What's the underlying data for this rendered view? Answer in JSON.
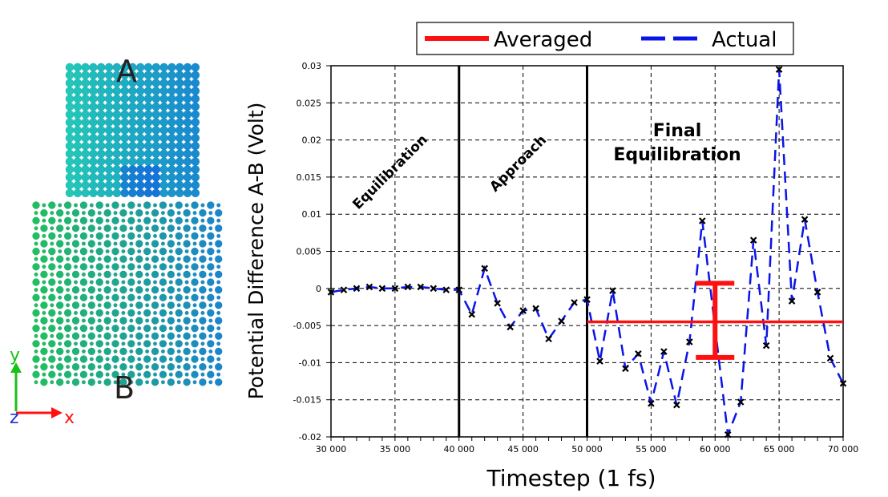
{
  "structure": {
    "label_top": "A",
    "label_bottom": "B",
    "axes": {
      "y": "y",
      "z": "z",
      "x": "x"
    },
    "colors": {
      "block_a": "#2fb8d8",
      "block_b": "#22c08a",
      "y_axis": "#18c018",
      "x_axis": "#ff1010",
      "z_axis": "#2030e0"
    }
  },
  "chart_data": {
    "type": "line",
    "xlabel": "Timestep (1 fs)",
    "ylabel": "Potential Difference A-B (Volt)",
    "xlim": [
      30000,
      70000
    ],
    "ylim": [
      -0.02,
      0.03
    ],
    "grid": true,
    "x_ticks": [
      30000,
      35000,
      40000,
      45000,
      50000,
      55000,
      60000,
      65000,
      70000
    ],
    "x_tick_labels": [
      "30 000",
      "35 000",
      "40 000",
      "45 000",
      "50 000",
      "55 000",
      "60 000",
      "65 000",
      "70 000"
    ],
    "y_ticks": [
      0.03,
      0.025,
      0.02,
      0.015,
      0.01,
      0.005,
      0,
      -0.005,
      -0.01,
      -0.015,
      -0.02
    ],
    "y_tick_labels": [
      "0.03",
      "0.025",
      "0.02",
      "0.015",
      "0.01",
      "0.005",
      "0",
      "-0.005",
      "-0.01",
      "-0.015",
      "-0.02"
    ],
    "legend": {
      "placement": "top",
      "entries": [
        "Averaged",
        "Actual"
      ]
    },
    "phase_boundaries": [
      40000,
      50000
    ],
    "annotations": [
      "Equilibration",
      "Approach",
      "Final",
      "Equilibration"
    ],
    "series": [
      {
        "name": "Actual",
        "color": "#0a14e6",
        "style": "dashed",
        "x": [
          30000,
          31000,
          32000,
          33000,
          34000,
          35000,
          36000,
          37000,
          38000,
          39000,
          40000,
          41000,
          42000,
          43000,
          44000,
          45000,
          46000,
          47000,
          48000,
          49000,
          50000,
          51000,
          52000,
          53000,
          54000,
          55000,
          56000,
          57000,
          58000,
          59000,
          61000,
          62000,
          63000,
          64000,
          65000,
          66000,
          67000,
          68000,
          69000,
          70000
        ],
        "y": [
          -0.0005,
          -0.0002,
          0,
          0.0002,
          0,
          0,
          0.0002,
          0.0002,
          0,
          -0.0002,
          -0.0002,
          -0.0035,
          0.0027,
          -0.002,
          -0.0052,
          -0.003,
          -0.0027,
          -0.0068,
          -0.0044,
          -0.0019,
          -0.0015,
          -0.0098,
          -0.0003,
          -0.0108,
          -0.0088,
          -0.0155,
          -0.0085,
          -0.0157,
          -0.0072,
          0.0091,
          -0.0197,
          -0.0153,
          0.0065,
          -0.0077,
          0.0295,
          -0.0017,
          0.0093,
          -0.0005,
          -0.0094,
          -0.0128
        ]
      },
      {
        "name": "Averaged",
        "color": "#ff1010",
        "x": [
          50000,
          70000
        ],
        "y": [
          -0.0045,
          -0.0045
        ],
        "error_bar": {
          "x": 60000,
          "low": -0.0093,
          "high": 0.0007
        }
      }
    ]
  }
}
